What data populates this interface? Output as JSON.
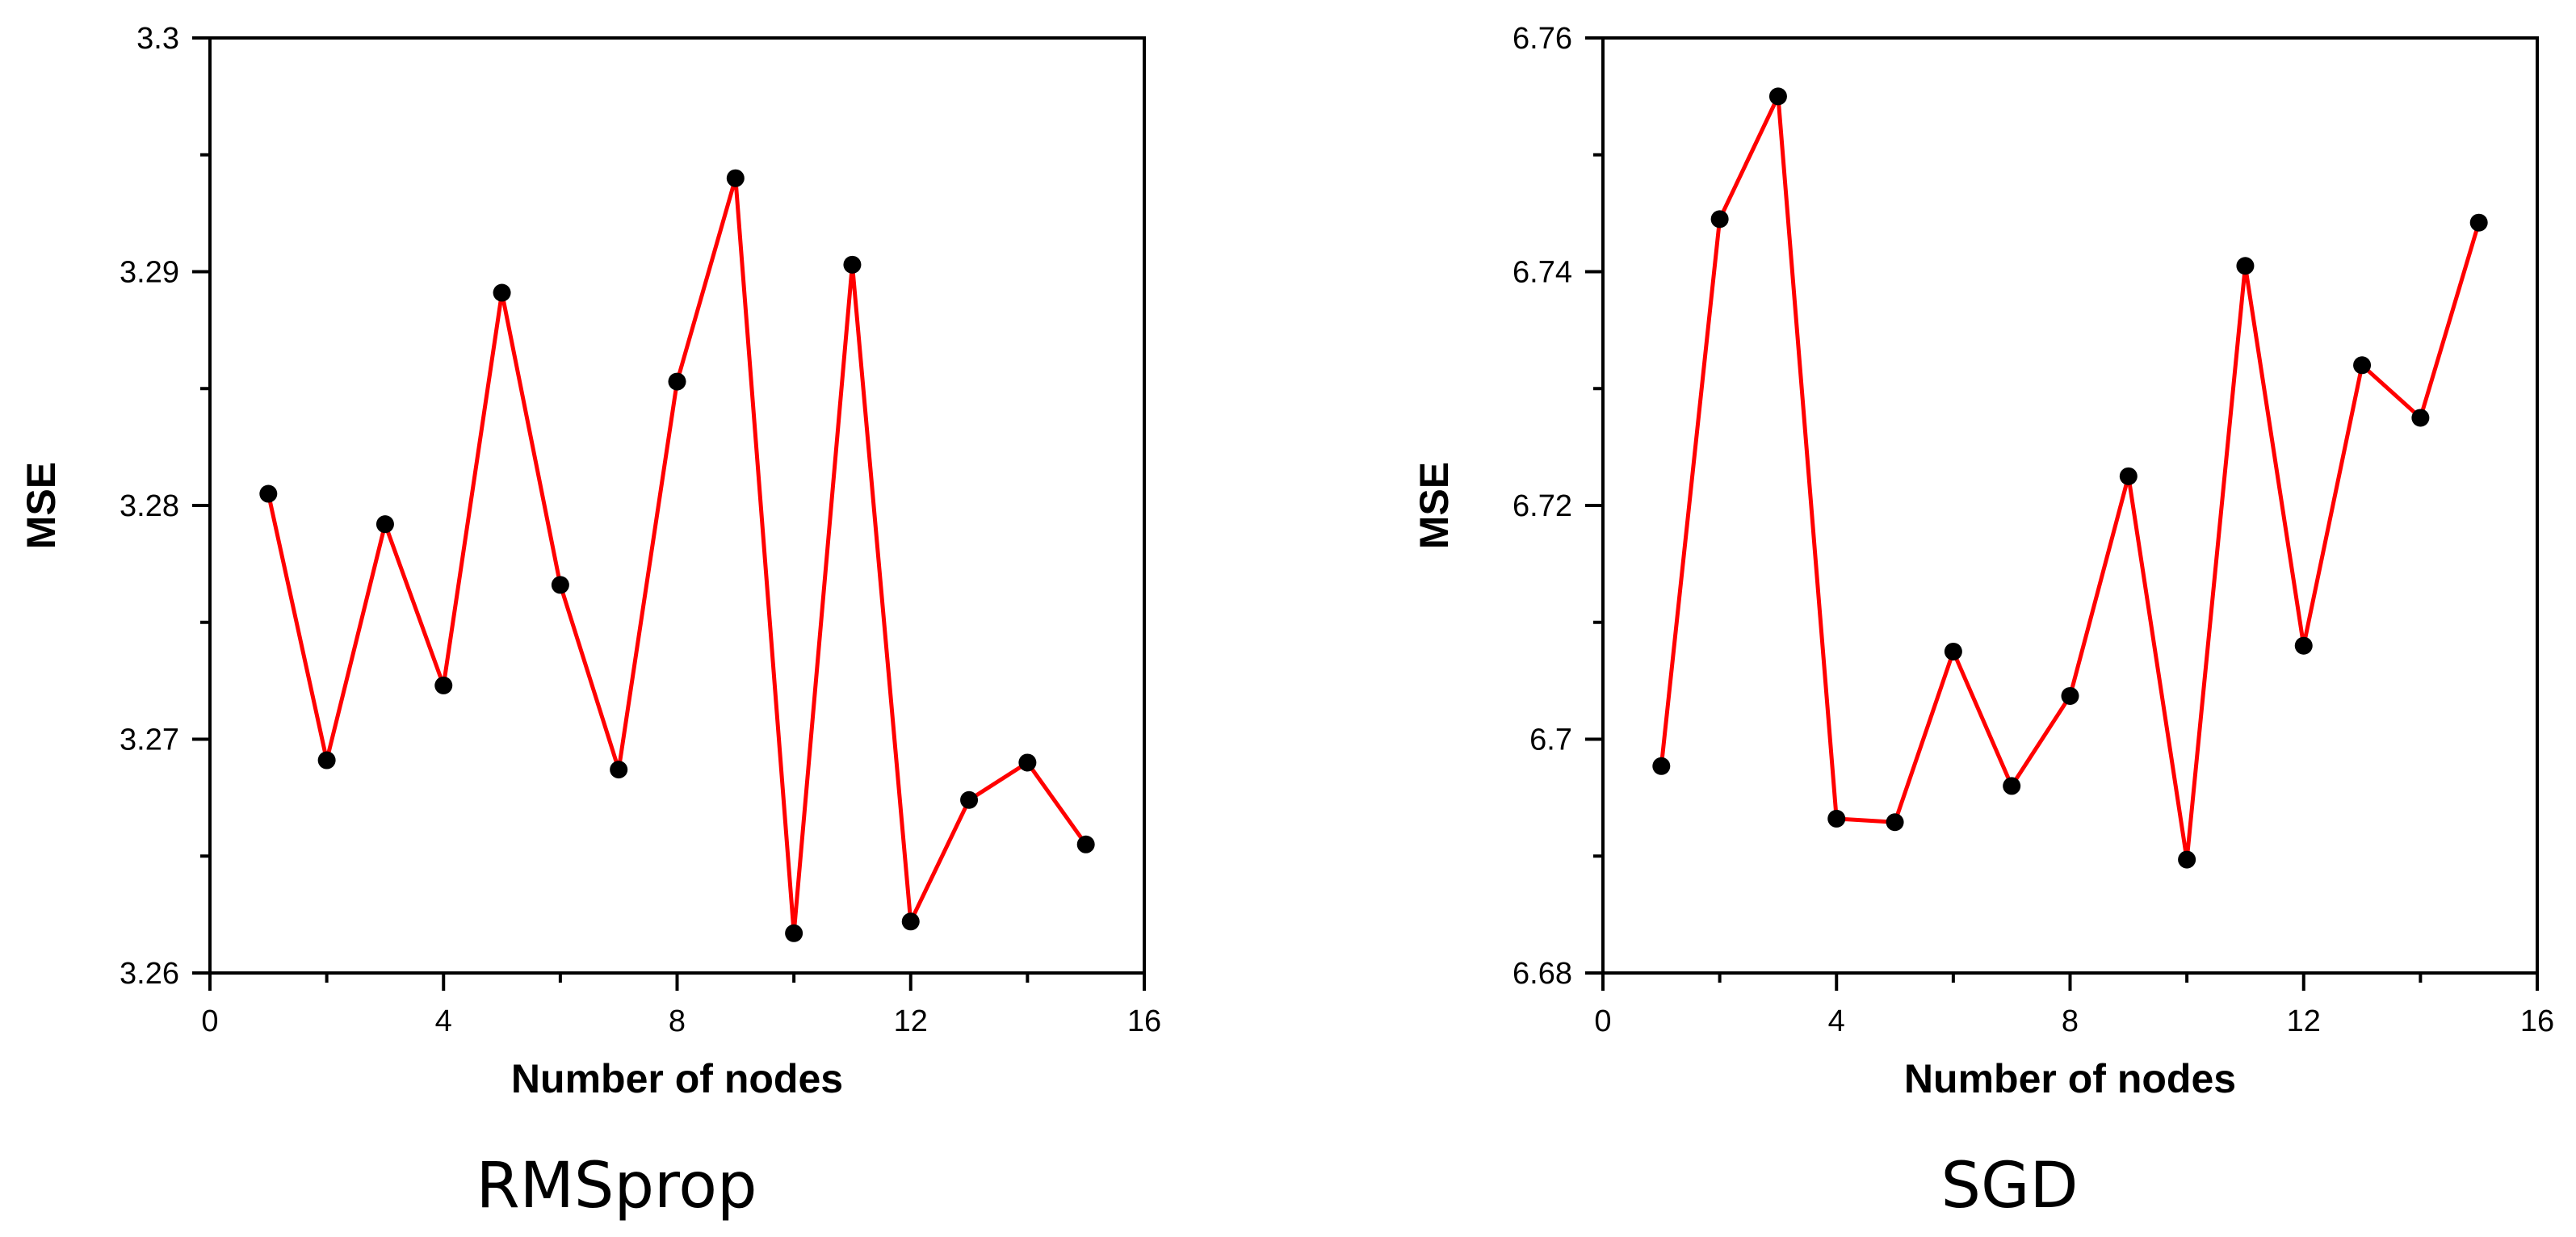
{
  "chart_data": [
    {
      "type": "line",
      "xlabel": "Number of nodes",
      "ylabel": "MSE",
      "caption": "RMSprop",
      "xlim": [
        0,
        16
      ],
      "ylim": [
        3.26,
        3.3
      ],
      "xticks": [
        0,
        4,
        8,
        12,
        16
      ],
      "xtick_labels": [
        "0",
        "4",
        "8",
        "12",
        "16"
      ],
      "yticks": [
        3.26,
        3.27,
        3.28,
        3.29,
        3.3
      ],
      "ytick_labels": [
        "3.26",
        "3.27",
        "3.28",
        "3.29",
        "3.3"
      ],
      "grid": false,
      "line_color": "#ff0000",
      "marker_color": "#000000",
      "x": [
        1,
        2,
        3,
        4,
        5,
        6,
        7,
        8,
        9,
        10,
        11,
        12,
        13,
        14,
        15
      ],
      "y": [
        3.2805,
        3.2691,
        3.2792,
        3.2723,
        3.2891,
        3.2766,
        3.2687,
        3.2853,
        3.294,
        3.2617,
        3.2903,
        3.2622,
        3.2674,
        3.269,
        3.2655
      ]
    },
    {
      "type": "line",
      "xlabel": "Number of nodes",
      "ylabel": "MSE",
      "caption": "SGD",
      "xlim": [
        0,
        16
      ],
      "ylim": [
        6.68,
        6.76
      ],
      "xticks": [
        0,
        4,
        8,
        12,
        16
      ],
      "xtick_labels": [
        "0",
        "4",
        "8",
        "12",
        "16"
      ],
      "yticks": [
        6.68,
        6.7,
        6.72,
        6.74,
        6.76
      ],
      "ytick_labels": [
        "6.68",
        "6.7",
        "6.72",
        "6.74",
        "6.76"
      ],
      "grid": false,
      "line_color": "#ff0000",
      "marker_color": "#000000",
      "x": [
        1,
        2,
        3,
        4,
        5,
        6,
        7,
        8,
        9,
        10,
        11,
        12,
        13,
        14,
        15
      ],
      "y": [
        6.6977,
        6.7445,
        6.755,
        6.6932,
        6.6929,
        6.7075,
        6.696,
        6.7037,
        6.7225,
        6.6897,
        6.7405,
        6.708,
        6.732,
        6.7275,
        6.7442
      ]
    }
  ]
}
